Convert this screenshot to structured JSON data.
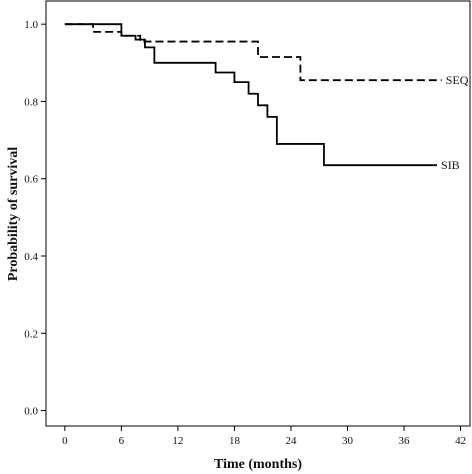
{
  "chart_data": {
    "type": "line",
    "step": true,
    "title": "",
    "xlabel": "Time (months)",
    "ylabel": "Probability of survival",
    "xlim": [
      -2,
      43
    ],
    "ylim": [
      -0.04,
      1.06
    ],
    "xticks": [
      0,
      6,
      12,
      18,
      24,
      30,
      36,
      42
    ],
    "yticks": [
      0.0,
      0.2,
      0.4,
      0.6,
      0.8,
      1.0
    ],
    "ytick_labels": [
      "0.0",
      "0.2",
      "0.4",
      "0.6",
      "0.8",
      "1.0"
    ],
    "grid": false,
    "legend": "inline labels at line ends",
    "series": [
      {
        "name": "SEQ",
        "line_style": "dashed",
        "color": "#000000",
        "x": [
          0,
          3,
          6,
          8,
          20.5,
          25,
          40
        ],
        "y": [
          1.0,
          0.98,
          0.97,
          0.955,
          0.915,
          0.855,
          0.855
        ]
      },
      {
        "name": "SIB",
        "line_style": "solid",
        "color": "#000000",
        "x": [
          0,
          6,
          7.5,
          8.5,
          9.5,
          16,
          18,
          19.5,
          20.5,
          21.5,
          22.5,
          27.5,
          39.5
        ],
        "y": [
          1.0,
          0.97,
          0.96,
          0.94,
          0.9,
          0.875,
          0.85,
          0.82,
          0.79,
          0.76,
          0.69,
          0.635,
          0.635
        ]
      }
    ]
  }
}
